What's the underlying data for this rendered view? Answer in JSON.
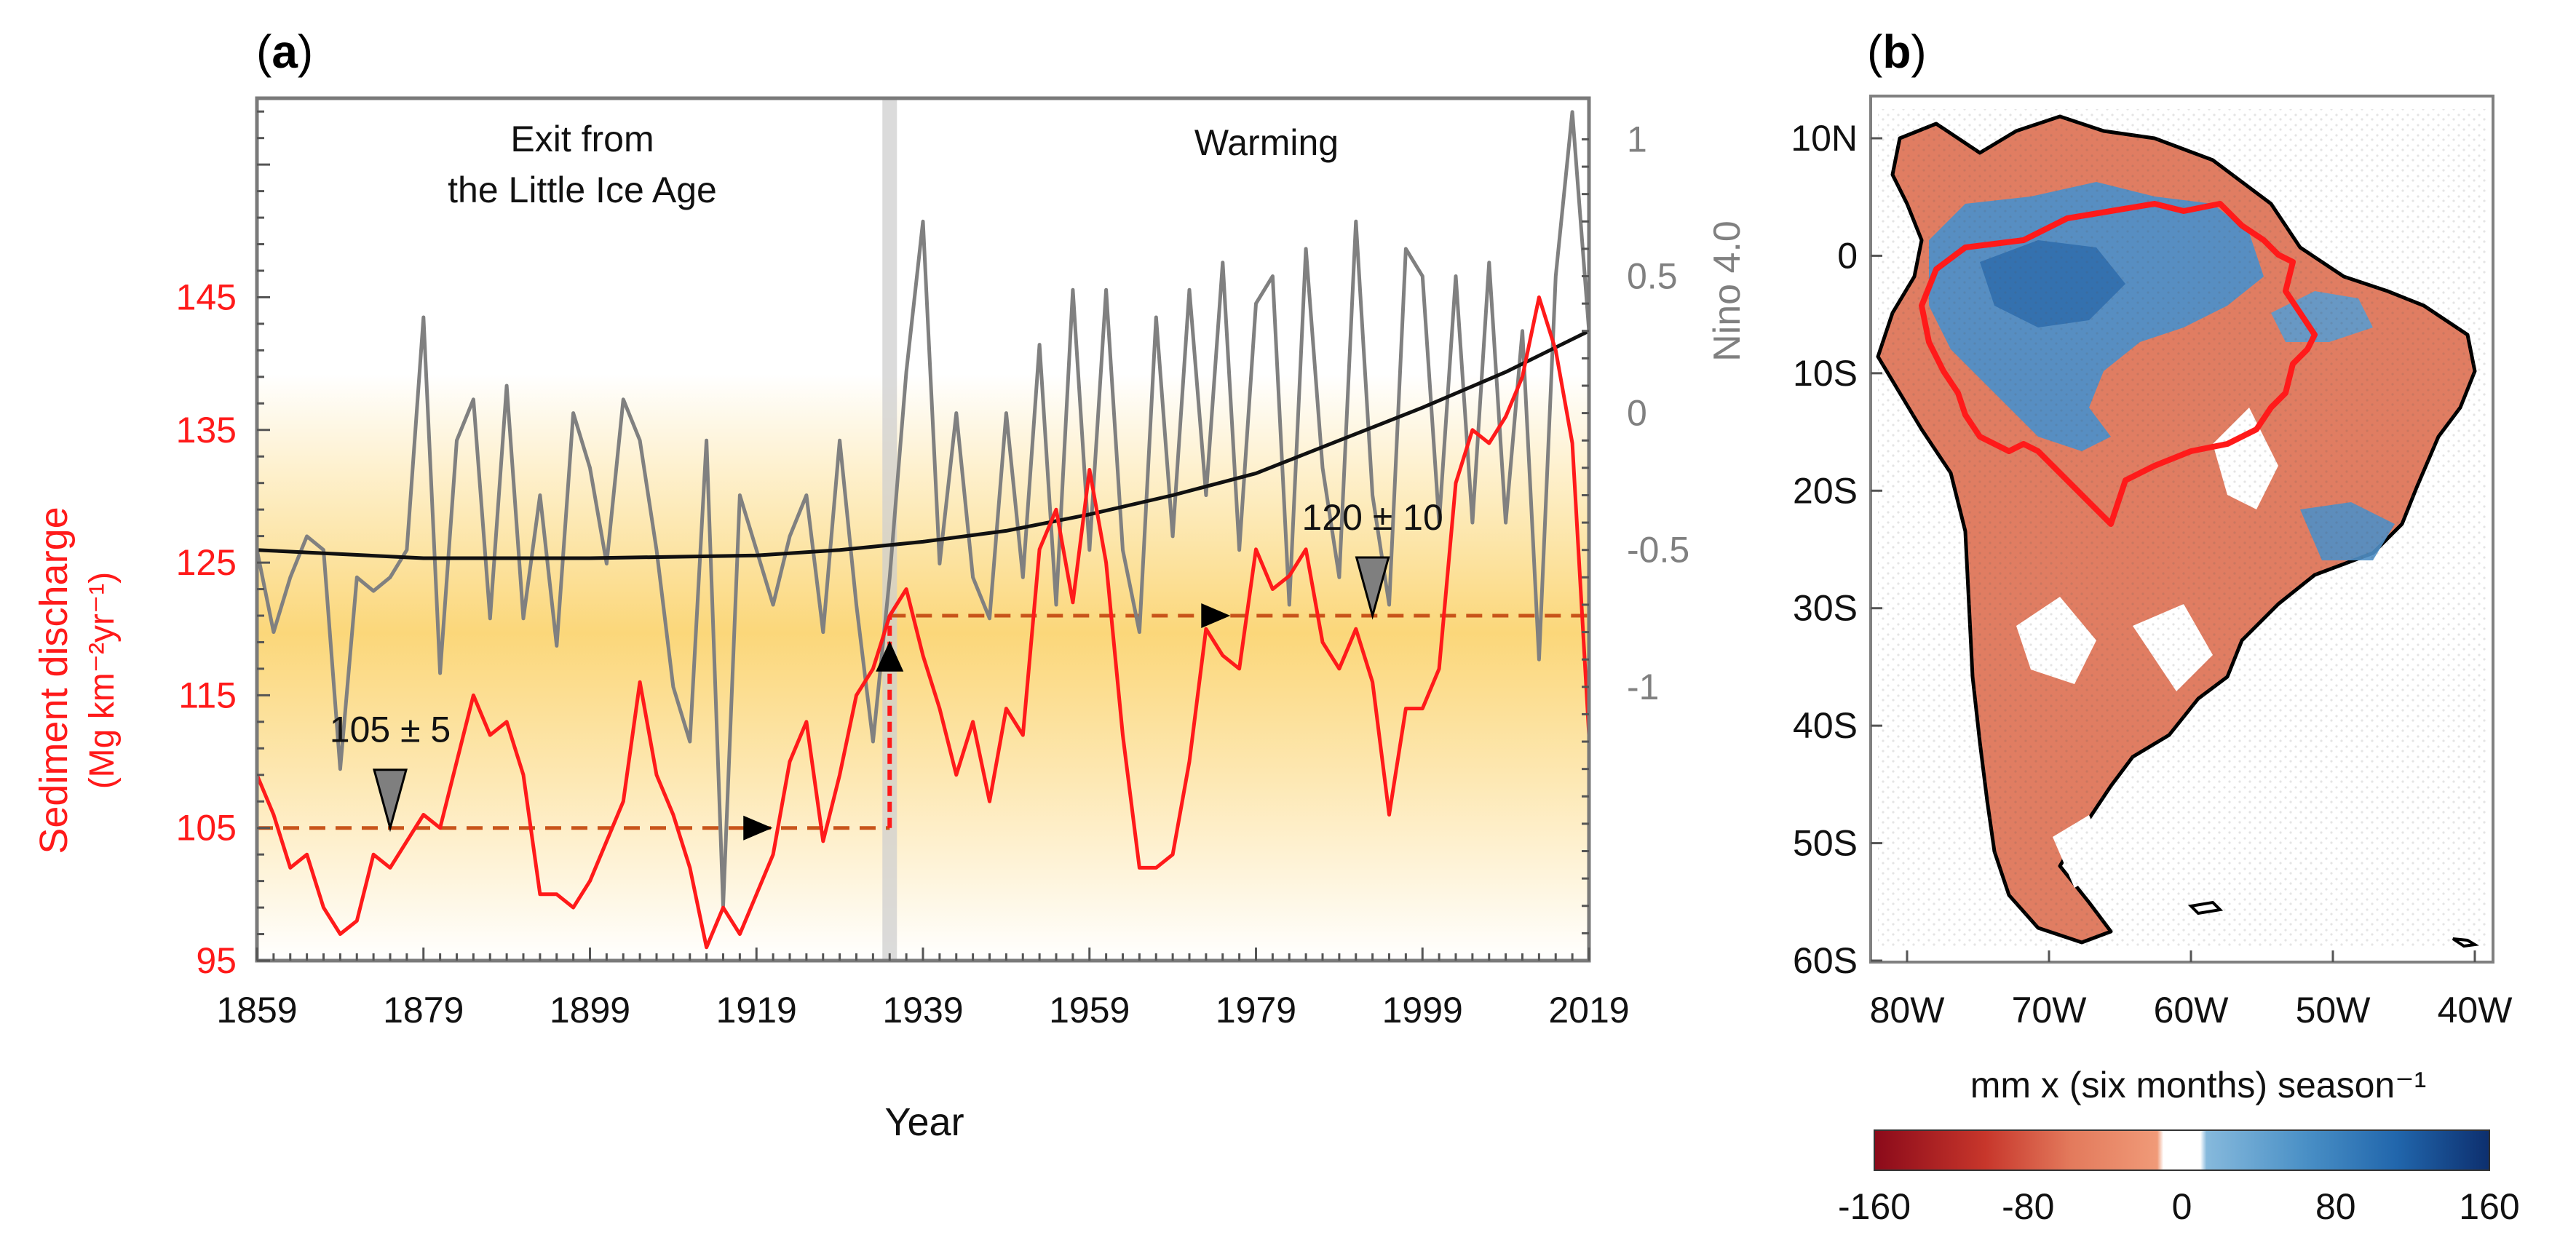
{
  "panel_a": {
    "label_open": "(",
    "label_letter": "a",
    "label_close": ")",
    "era1_line1": "Exit from",
    "era1_line2": "the Little Ice Age",
    "era2": "Warming",
    "ylabel_left_line1": "Sediment discharge",
    "ylabel_left_line2": "(Mg km⁻²yr⁻¹)",
    "ylabel_right": "Nino 4.0",
    "xlabel": "Year",
    "annotation1": "105 ± 5",
    "annotation2": "120 ± 10"
  },
  "panel_b": {
    "label_open": "(",
    "label_letter": "b",
    "label_close": ")",
    "colorbar_title": "mm x (six months) season⁻¹"
  },
  "colors": {
    "sediment": "#ff1a1a",
    "nino": "#808080",
    "trend": "#111111",
    "mean_line": "#c8541a",
    "positive": "#2166ac",
    "negative": "#e0785a"
  },
  "chart_data": [
    {
      "type": "line",
      "title": "(a)",
      "xlabel": "Year",
      "ylabel": "Sediment discharge (Mg km-2yr-1)",
      "ylabel_right": "Nino 4.0",
      "xlim": [
        1859,
        2019
      ],
      "ylim": [
        95,
        160
      ],
      "ylim_right": [
        -2.0,
        1.15
      ],
      "x_ticks": [
        1859,
        1879,
        1899,
        1919,
        1939,
        1959,
        1979,
        1999,
        2019
      ],
      "y_ticks": [
        95,
        105,
        115,
        125,
        135,
        145
      ],
      "y_ticks_right": [
        -1,
        -0.5,
        0,
        0.5,
        1
      ],
      "y_tick_labels_right": [
        "-1",
        "-0.5",
        "0",
        "0.5",
        "1"
      ],
      "regime_shift_year": 1935,
      "series": [
        {
          "name": "Sediment discharge",
          "axis": "left",
          "years": [
            1859,
            1861,
            1863,
            1865,
            1867,
            1869,
            1871,
            1873,
            1875,
            1877,
            1879,
            1881,
            1883,
            1885,
            1887,
            1889,
            1891,
            1893,
            1895,
            1897,
            1899,
            1901,
            1903,
            1905,
            1907,
            1909,
            1911,
            1913,
            1915,
            1917,
            1919,
            1921,
            1923,
            1925,
            1927,
            1929,
            1931,
            1933,
            1935,
            1937,
            1939,
            1941,
            1943,
            1945,
            1947,
            1949,
            1951,
            1953,
            1955,
            1957,
            1959,
            1961,
            1963,
            1965,
            1967,
            1969,
            1971,
            1973,
            1975,
            1977,
            1979,
            1981,
            1983,
            1985,
            1987,
            1989,
            1991,
            1993,
            1995,
            1997,
            1999,
            2001,
            2003,
            2005,
            2007,
            2009,
            2011,
            2013,
            2015,
            2017,
            2019
          ],
          "values": [
            109,
            106,
            102,
            103,
            99,
            97,
            98,
            103,
            102,
            104,
            106,
            105,
            110,
            115,
            112,
            113,
            109,
            100,
            100,
            99,
            101,
            104,
            107,
            116,
            109,
            106,
            102,
            96,
            99,
            97,
            100,
            103,
            110,
            113,
            104,
            109,
            115,
            117,
            121,
            123,
            118,
            114,
            109,
            113,
            107,
            114,
            112,
            126,
            129,
            122,
            132,
            125,
            112,
            102,
            102,
            103,
            110,
            120,
            118,
            117,
            126,
            123,
            124,
            126,
            119,
            117,
            120,
            116,
            106,
            114,
            114,
            117,
            131,
            135,
            134,
            136,
            139,
            145,
            141,
            134,
            112
          ]
        },
        {
          "name": "Nino 4.0",
          "axis": "right",
          "years": [
            1859,
            1861,
            1863,
            1865,
            1867,
            1869,
            1871,
            1873,
            1875,
            1877,
            1879,
            1881,
            1883,
            1885,
            1887,
            1889,
            1891,
            1893,
            1895,
            1897,
            1899,
            1901,
            1903,
            1905,
            1907,
            1909,
            1911,
            1913,
            1915,
            1917,
            1919,
            1921,
            1923,
            1925,
            1927,
            1929,
            1931,
            1933,
            1935,
            1937,
            1939,
            1941,
            1943,
            1945,
            1947,
            1949,
            1951,
            1953,
            1955,
            1957,
            1959,
            1961,
            1963,
            1965,
            1967,
            1969,
            1971,
            1973,
            1975,
            1977,
            1979,
            1981,
            1983,
            1985,
            1987,
            1989,
            1991,
            1993,
            1995,
            1997,
            1999,
            2001,
            2003,
            2005,
            2007,
            2009,
            2011,
            2013,
            2015,
            2017,
            2019
          ],
          "values": [
            -0.5,
            -0.8,
            -0.6,
            -0.45,
            -0.5,
            -1.3,
            -0.6,
            -0.65,
            -0.6,
            -0.5,
            0.35,
            -0.95,
            -0.1,
            0.05,
            -0.75,
            0.1,
            -0.75,
            -0.3,
            -0.85,
            0.0,
            -0.2,
            -0.55,
            0.05,
            -0.1,
            -0.5,
            -1.0,
            -1.2,
            -0.1,
            -1.8,
            -0.3,
            -0.5,
            -0.7,
            -0.45,
            -0.3,
            -0.8,
            -0.1,
            -0.7,
            -1.2,
            -0.6,
            0.15,
            0.7,
            -0.55,
            0.0,
            -0.6,
            -0.75,
            0.0,
            -0.6,
            0.25,
            -0.7,
            0.45,
            -0.5,
            0.45,
            -0.5,
            -0.8,
            0.35,
            -0.45,
            0.45,
            -0.3,
            0.55,
            -0.5,
            0.4,
            0.5,
            -0.7,
            0.6,
            -0.2,
            -0.6,
            0.7,
            -0.3,
            -0.7,
            0.6,
            0.5,
            -0.4,
            0.5,
            -0.4,
            0.55,
            -0.4,
            0.3,
            -0.9,
            0.5,
            1.1,
            0.3
          ]
        },
        {
          "name": "Nino 4.0 trend",
          "axis": "right",
          "years": [
            1859,
            1879,
            1899,
            1919,
            1929,
            1939,
            1949,
            1959,
            1969,
            1979,
            1989,
            1999,
            2009,
            2019
          ],
          "values": [
            -0.5,
            -0.53,
            -0.53,
            -0.52,
            -0.5,
            -0.47,
            -0.43,
            -0.37,
            -0.3,
            -0.22,
            -0.1,
            0.02,
            0.15,
            0.3
          ]
        },
        {
          "name": "Mean before shift",
          "axis": "left",
          "years": [
            1859,
            1935
          ],
          "values": [
            105,
            105
          ]
        },
        {
          "name": "Mean after shift",
          "axis": "left",
          "years": [
            1935,
            2019
          ],
          "values": [
            121,
            121
          ]
        }
      ],
      "annotations": [
        {
          "text": "105 ± 5",
          "year": 1875,
          "value": 105
        },
        {
          "text": "120 ± 10",
          "year": 1993,
          "value": 121
        }
      ],
      "markers": [
        {
          "shape": "arrow-right",
          "year": 1919,
          "value": 105
        },
        {
          "shape": "arrow-up",
          "year": 1935,
          "value": 118
        },
        {
          "shape": "arrow-right",
          "year": 1974,
          "value": 121
        }
      ],
      "periods": [
        {
          "label": "Exit from the Little Ice Age",
          "from": 1859,
          "to": 1935
        },
        {
          "label": "Warming",
          "from": 1935,
          "to": 2019
        }
      ]
    },
    {
      "type": "heatmap",
      "title": "(b)",
      "description_region": "South America precipitation trend map",
      "lat_ticks": [
        "10N",
        "0",
        "10S",
        "20S",
        "30S",
        "40S",
        "50S",
        "60S"
      ],
      "lon_ticks": [
        "80W",
        "70W",
        "60W",
        "50W",
        "40W"
      ],
      "colorbar_title": "mm x (six months) season-1",
      "colorbar_range": [
        -160,
        160
      ],
      "colorbar_ticks": [
        -160,
        -80,
        0,
        80,
        160
      ],
      "colorbar_tick_labels": [
        "-160",
        "-80",
        "0",
        "80",
        "160"
      ]
    }
  ]
}
